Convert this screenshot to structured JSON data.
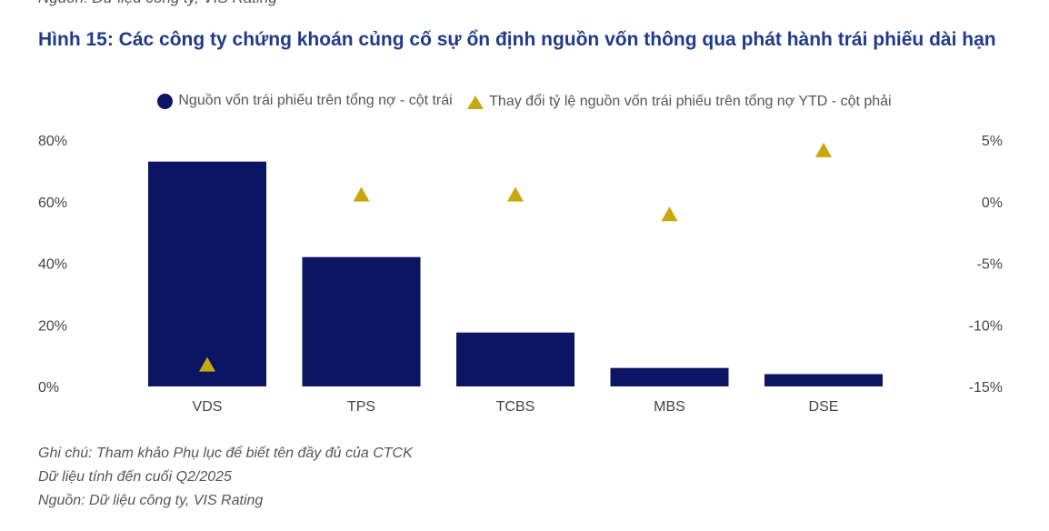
{
  "header": {
    "source_top": "Nguồn: Dữ liệu công ty, VIS Rating",
    "title": "Hình 15: Các công ty chứng khoán củng cố sự ổn định nguồn vốn thông qua phát hành trái phiếu dài hạn"
  },
  "chart_data": {
    "type": "bar",
    "categories": [
      "VDS",
      "TPS",
      "TCBS",
      "MBS",
      "DSE"
    ],
    "series": [
      {
        "name": "Nguồn vốn trái phiếu trên tổng nợ - cột trái",
        "type": "bar",
        "axis": "left",
        "values": [
          73,
          42,
          17.5,
          6,
          4
        ],
        "color": "#0c1464"
      },
      {
        "name": "Thay đổi tỷ lệ nguồn vốn trái phiếu trên tổng nợ YTD - cột phải",
        "type": "marker",
        "axis": "right",
        "values": [
          -13.2,
          0.6,
          0.6,
          -1.0,
          4.2
        ],
        "color": "#c9a70e"
      }
    ],
    "y_left": {
      "ylim": [
        0,
        80
      ],
      "ticks": [
        0,
        20,
        40,
        60,
        80
      ],
      "tick_labels": [
        "0%",
        "20%",
        "40%",
        "60%",
        "80%"
      ]
    },
    "y_right": {
      "ylim": [
        -15,
        5
      ],
      "ticks": [
        -15,
        -10,
        -5,
        0,
        5
      ],
      "tick_labels": [
        "-15%",
        "-10%",
        "-5%",
        "0%",
        "5%"
      ]
    },
    "grid": false,
    "legend_position": "top"
  },
  "notes": [
    "Ghi chú: Tham khảo Phụ lục để biết tên đầy đủ của CTCK",
    "Dữ liệu tính đến cuối Q2/2025",
    "Nguồn: Dữ liệu công ty, VIS Rating"
  ]
}
